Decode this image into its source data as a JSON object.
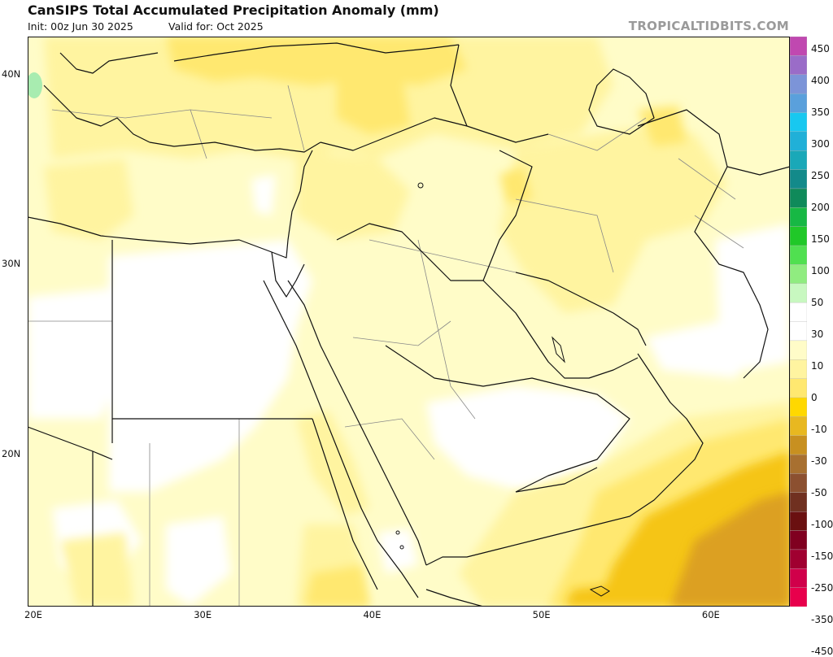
{
  "header": {
    "title": "CanSIPS Total Accumulated Precipitation Anomaly (mm)",
    "init": "Init: 00z Jun 30 2025",
    "valid": "Valid for: Oct 2025",
    "brand": "TROPICALTIDBITS.COM"
  },
  "axes": {
    "lat_labels": [
      {
        "value": 40,
        "text": "40N"
      },
      {
        "value": 30,
        "text": "30N"
      },
      {
        "value": 20,
        "text": "20N"
      }
    ],
    "lon_labels": [
      {
        "value": 20,
        "text": "20E"
      },
      {
        "value": 30,
        "text": "30E"
      },
      {
        "value": 40,
        "text": "40E"
      },
      {
        "value": 50,
        "text": "50E"
      },
      {
        "value": 60,
        "text": "60E"
      }
    ],
    "lon_range": [
      20,
      65
    ],
    "lat_range": [
      12,
      42
    ]
  },
  "colorbar": {
    "labels": [
      "450",
      "400",
      "350",
      "300",
      "250",
      "200",
      "150",
      "100",
      "50",
      "30",
      "10",
      "0",
      "-10",
      "-30",
      "-50",
      "-100",
      "-150",
      "-250",
      "-350",
      "-450"
    ],
    "colors": [
      "#c048b0",
      "#9a6cc8",
      "#7c94d8",
      "#5aa0dc",
      "#18c8f0",
      "#20b0d8",
      "#1aa8b8",
      "#138a8a",
      "#0f8a5a",
      "#17b844",
      "#20c828",
      "#50e050",
      "#90ec80",
      "#c8f8c0",
      "#ffffff",
      "#ffffff",
      "#fffcc8",
      "#fff4a0",
      "#ffe870",
      "#ffd800",
      "#e8b820",
      "#c89020",
      "#a87030",
      "#8c5030",
      "#703020",
      "#6a1010",
      "#800020",
      "#a00030",
      "#d0004a",
      "#e8004c"
    ]
  },
  "map_colors": {
    "land_border": "#111111",
    "state_border": "#888888",
    "light_yellow": "#fffcc8",
    "yellow": "#fff4a0",
    "gold": "#ffe870",
    "orange": "#f5c518",
    "dark_orange": "#dca020",
    "brown": "#c8902a",
    "green_light": "#a8ecb0"
  }
}
